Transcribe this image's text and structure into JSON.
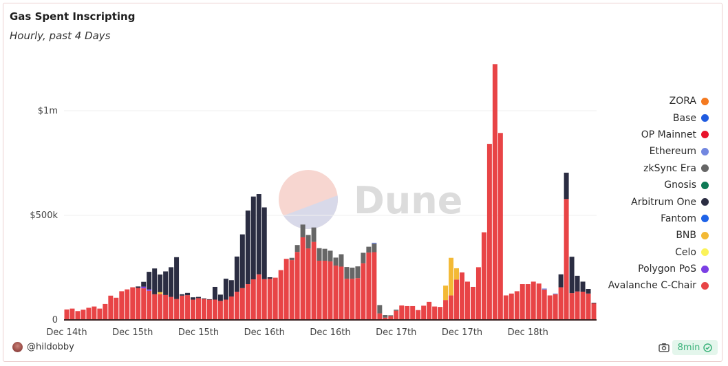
{
  "header": {
    "title": "Gas Spent Inscripting",
    "subtitle": "Hourly, past 4 Days"
  },
  "footer": {
    "author": "@hildobby",
    "refresh_label": "8min"
  },
  "watermark": "Dune",
  "chart_data": {
    "type": "bar",
    "stacked": true,
    "title": "Gas Spent Inscripting",
    "subtitle": "Hourly, past 4 Days",
    "units": "USD thousands",
    "bar_count": 97,
    "ylim": [
      0,
      1250
    ],
    "yticks": [
      {
        "value": 0,
        "label": "0"
      },
      {
        "value": 500,
        "label": "$500k"
      },
      {
        "value": 1000,
        "label": "$1m"
      }
    ],
    "xticks": [
      {
        "bar": 1,
        "label": "Dec 14th"
      },
      {
        "bar": 13,
        "label": "Dec 15th"
      },
      {
        "bar": 25,
        "label": "Dec 15th"
      },
      {
        "bar": 37,
        "label": "Dec 16th"
      },
      {
        "bar": 49,
        "label": "Dec 16th"
      },
      {
        "bar": 61,
        "label": "Dec 17th"
      },
      {
        "bar": 73,
        "label": "Dec 17th"
      },
      {
        "bar": 85,
        "label": "Dec 18th"
      }
    ],
    "grid": true,
    "legend_position": "right",
    "legend": [
      {
        "name": "ZORA",
        "color": "#f47a20"
      },
      {
        "name": "Base",
        "color": "#1f5be0"
      },
      {
        "name": "OP Mainnet",
        "color": "#e8142b"
      },
      {
        "name": "Ethereum",
        "color": "#7287e0"
      },
      {
        "name": "zkSync Era",
        "color": "#666666"
      },
      {
        "name": "Gnosis",
        "color": "#0e7a55"
      },
      {
        "name": "Arbitrum One",
        "color": "#2b2d42"
      },
      {
        "name": "Fantom",
        "color": "#1f63e8"
      },
      {
        "name": "BNB",
        "color": "#f3b935"
      },
      {
        "name": "Celo",
        "color": "#fbf35a"
      },
      {
        "name": "Polygon PoS",
        "color": "#7b3fe4"
      },
      {
        "name": "Avalanche C-Chair",
        "color": "#e84446"
      }
    ],
    "series": [
      {
        "name": "Avalanche C-Chair",
        "color": "#e84446",
        "segments": [
          {
            "start": 1,
            "values": [
              50,
              54,
              42,
              49,
              58,
              64,
              54,
              76,
              116,
              106,
              137,
              146,
              156,
              153,
              151,
              139,
              123,
              124,
              119,
              110,
              100,
              116,
              118,
              97,
              104,
              100,
              97,
              97,
              91,
              97,
              112,
              135,
              152,
              171,
              194,
              218,
              195,
              197,
              202,
              238,
              292,
              286,
              325,
              395,
              342,
              373,
              283,
              283,
              280,
              260,
              255,
              197,
              197,
              200,
              271,
              322,
              324,
              31,
              11,
              18,
              44,
              69,
              66,
              66,
              47,
              68,
              86,
              64,
              62,
              95,
              117,
              193,
              227,
              183,
              158,
              252,
              419,
              842,
              1223,
              894,
              117,
              126,
              137,
              171,
              171,
              183,
              174,
              145,
              117,
              123,
              156,
              578,
              128,
              136,
              135,
              126,
              79
            ]
          }
        ]
      },
      {
        "name": "Polygon PoS",
        "color": "#7b3fe4",
        "segments": [
          {
            "start": 15,
            "values": [
              8,
              7
            ]
          }
        ]
      },
      {
        "name": "BNB",
        "color": "#f3b935",
        "segments": [
          {
            "start": 18,
            "values": [
              9
            ]
          },
          {
            "start": 70,
            "values": [
              69,
              180,
              54
            ]
          }
        ]
      },
      {
        "name": "Arbitrum One",
        "color": "#2b2d42",
        "segments": [
          {
            "start": 14,
            "values": [
              7,
              23,
              84,
              123,
              84,
              113,
              142,
              200,
              7,
              11,
              11,
              6,
              3,
              2,
              61,
              30,
              100,
              78,
              168,
              257,
              352,
              396,
              384,
              343,
              7
            ]
          },
          {
            "start": 91,
            "values": [
              62,
              126,
              174,
              75,
              48,
              22,
              3
            ]
          }
        ]
      },
      {
        "name": "zkSync Era",
        "color": "#666666",
        "segments": [
          {
            "start": 42,
            "values": [
              11,
              33,
              61,
              64,
              69,
              60,
              57,
              51,
              38,
              59,
              56,
              53,
              56,
              50,
              28,
              41,
              40,
              12,
              4,
              5
            ]
          }
        ]
      },
      {
        "name": "Ethereum",
        "color": "#7287e0",
        "segments": [
          {
            "start": 57,
            "values": [
              4
            ]
          },
          {
            "start": 88,
            "values": [
              5
            ]
          },
          {
            "start": 90,
            "values": [
              3
            ]
          }
        ]
      }
    ]
  }
}
